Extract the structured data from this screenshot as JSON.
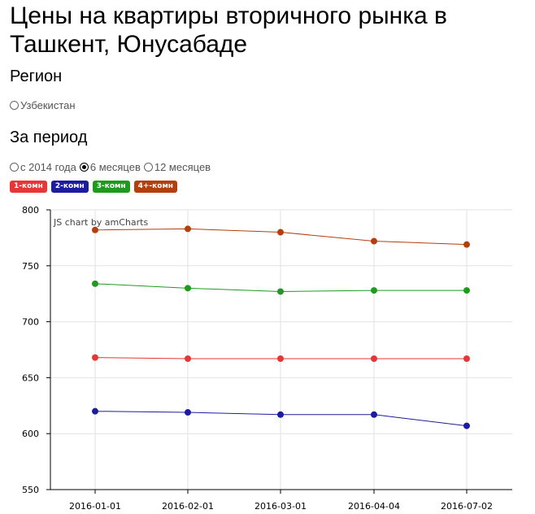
{
  "page": {
    "title": "Цены на квартиры вторичного рынка в Ташкент, Юнусабаде",
    "region_heading": "Регион",
    "region_option": "Узбекистан",
    "period_heading": "За период",
    "period_options": [
      {
        "label": "с 2014 года",
        "checked": false
      },
      {
        "label": "6 месяцев",
        "checked": true
      },
      {
        "label": "12 месяцев",
        "checked": false
      }
    ],
    "credit": "JS chart by amCharts"
  },
  "legend": [
    {
      "label": "1-комн",
      "color": "#e83535"
    },
    {
      "label": "2-комн",
      "color": "#1c1ca0"
    },
    {
      "label": "3-комн",
      "color": "#1f9a1f"
    },
    {
      "label": "4+-комн",
      "color": "#b33f0c"
    }
  ],
  "chart_data": {
    "type": "line",
    "categories": [
      "2016-01-01",
      "2016-02-01",
      "2016-03-01",
      "2016-04-04",
      "2016-07-02"
    ],
    "ylim": [
      550,
      800
    ],
    "yticks": [
      550,
      600,
      650,
      700,
      750,
      800
    ],
    "grid": true,
    "series": [
      {
        "name": "1-комн",
        "color": "#e83535",
        "values": [
          668,
          667,
          667,
          667,
          667
        ]
      },
      {
        "name": "2-комн",
        "color": "#1c1ca0",
        "values": [
          620,
          619,
          617,
          617,
          607
        ]
      },
      {
        "name": "3-комн",
        "color": "#1f9a1f",
        "values": [
          734,
          730,
          727,
          728,
          728
        ]
      },
      {
        "name": "4+-комн",
        "color": "#b33f0c",
        "values": [
          782,
          783,
          780,
          772,
          769
        ]
      }
    ]
  }
}
